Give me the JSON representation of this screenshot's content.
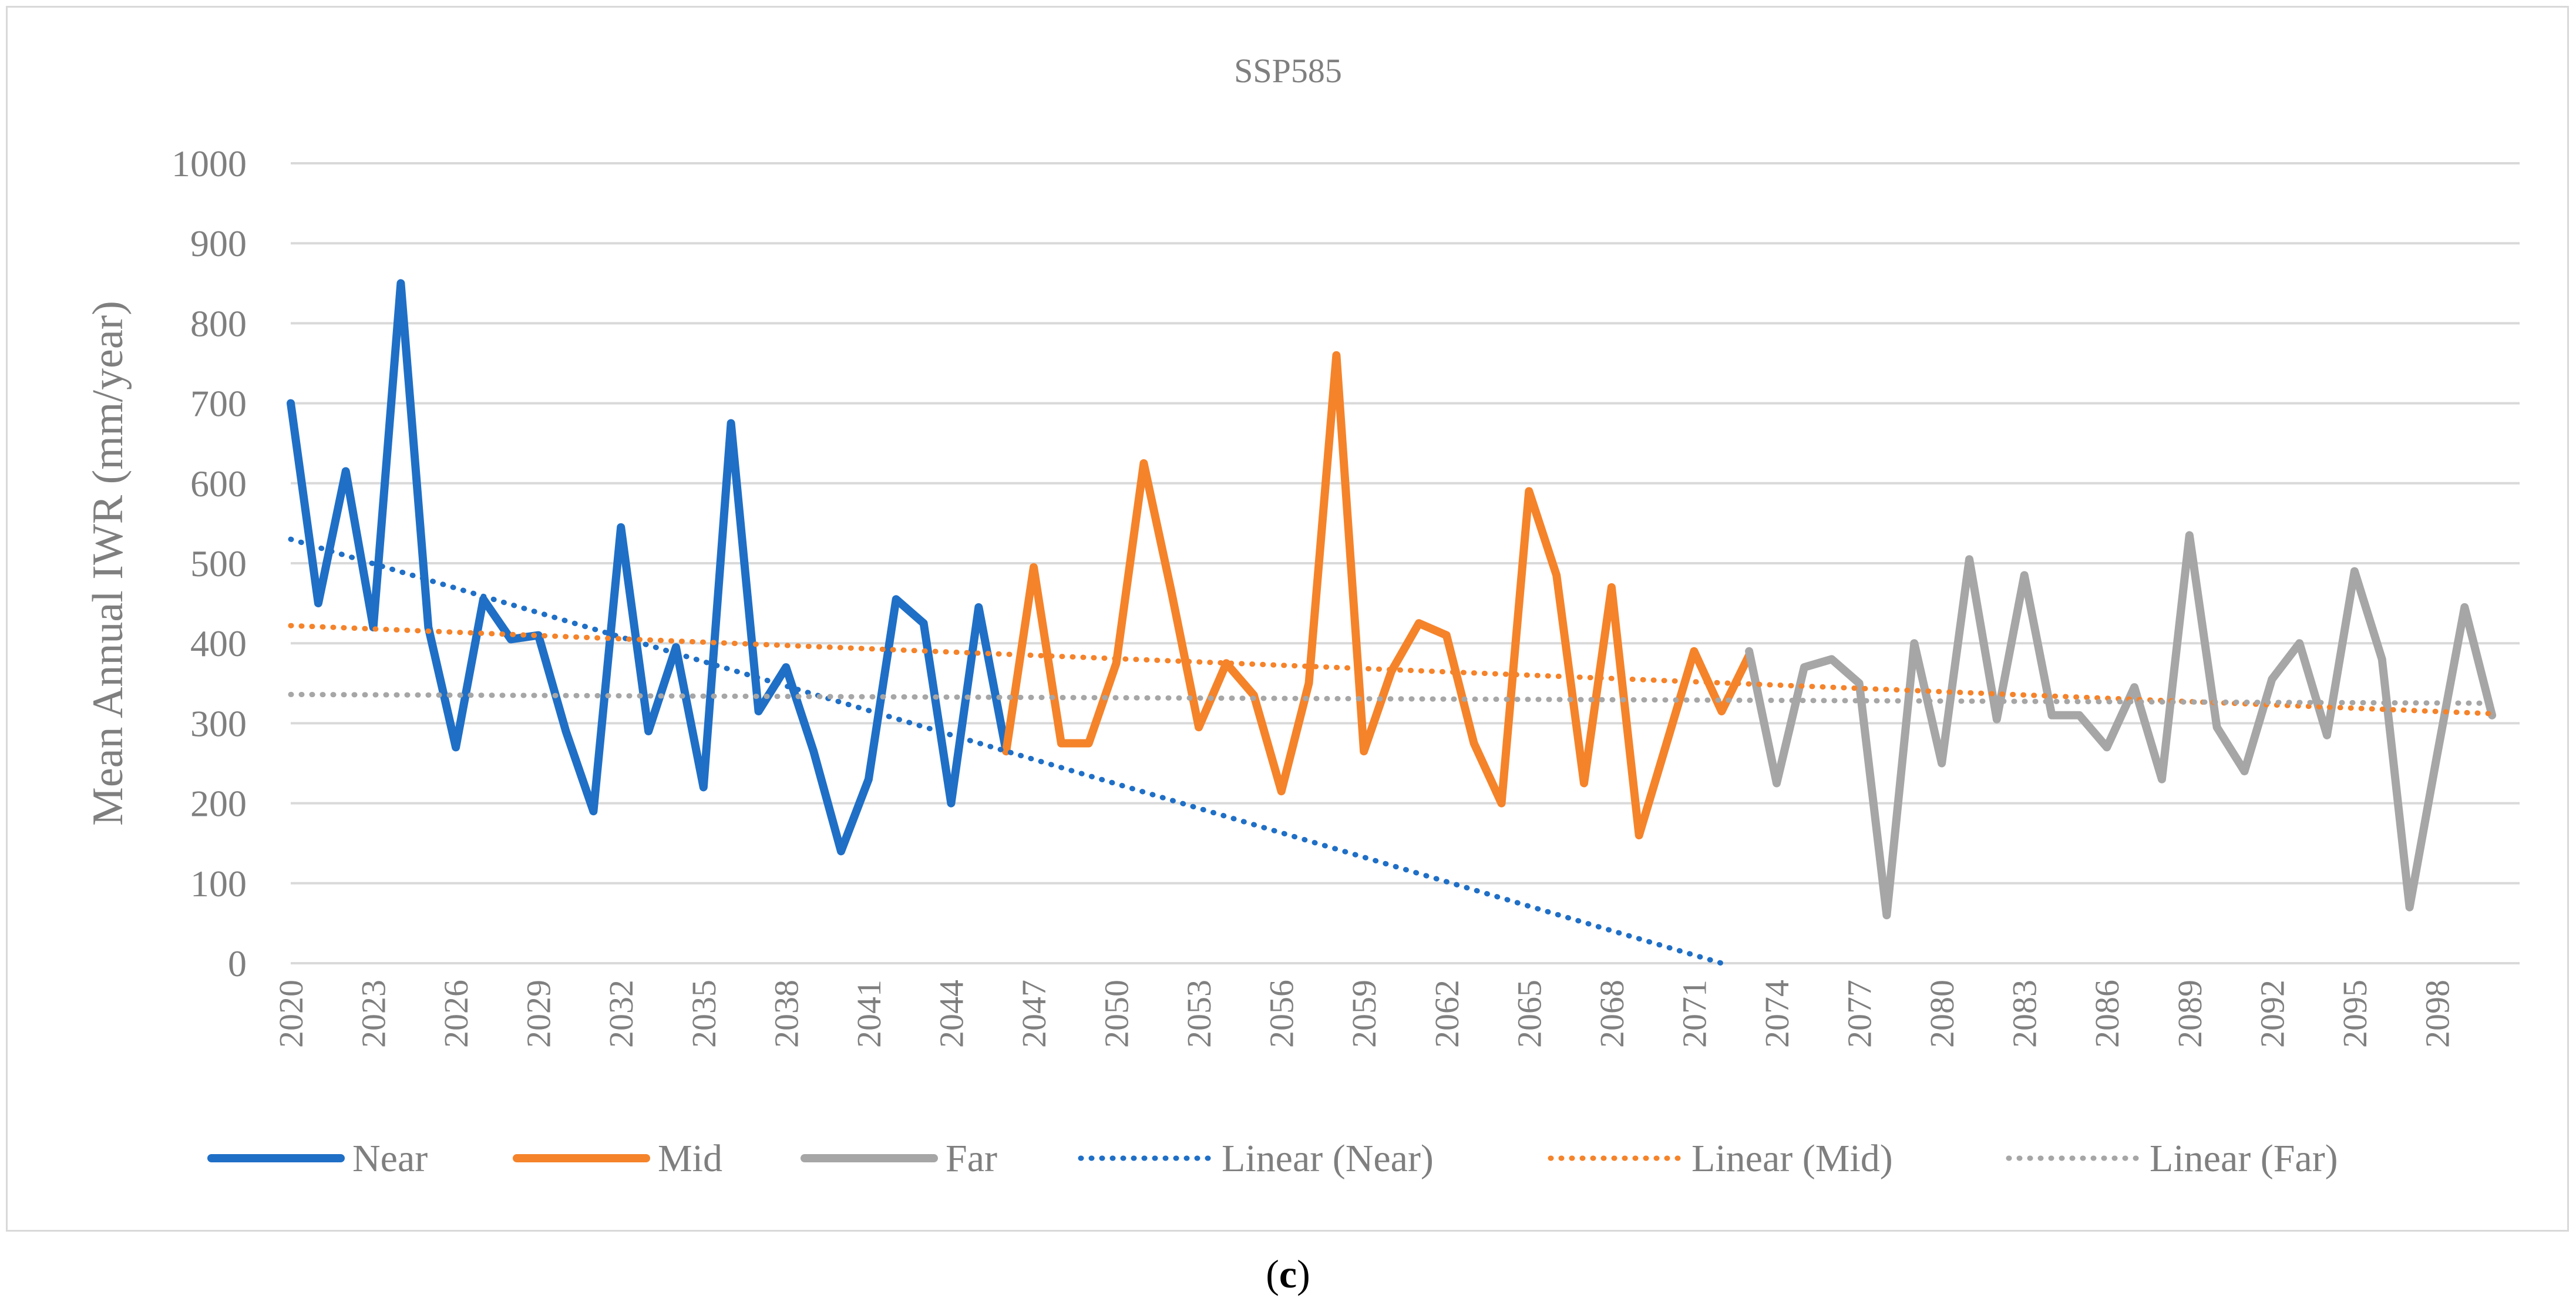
{
  "chart_data": {
    "type": "line",
    "title": "SSP585",
    "ylabel": "Mean Annual IWR (mm/year)",
    "xlabel": "",
    "ylim": [
      0,
      1000
    ],
    "yticks": [
      0,
      100,
      200,
      300,
      400,
      500,
      600,
      700,
      800,
      900,
      1000
    ],
    "xlim": [
      2020,
      2101
    ],
    "xticks": [
      2020,
      2023,
      2026,
      2029,
      2032,
      2035,
      2038,
      2041,
      2044,
      2047,
      2050,
      2053,
      2056,
      2059,
      2062,
      2065,
      2068,
      2071,
      2074,
      2077,
      2080,
      2083,
      2086,
      2089,
      2092,
      2095,
      2098
    ],
    "grid": true,
    "legend_position": "bottom",
    "series": [
      {
        "name": "Near",
        "color": "#1f6fc6",
        "style": "solid",
        "x_start": 2020,
        "values": [
          700,
          450,
          615,
          420,
          850,
          420,
          270,
          455,
          405,
          410,
          290,
          190,
          545,
          290,
          395,
          220,
          675,
          315,
          370,
          265,
          140,
          230,
          455,
          425,
          200,
          445,
          265
        ]
      },
      {
        "name": "Mid",
        "color": "#f5832a",
        "style": "solid",
        "x_start": 2046,
        "values": [
          265,
          495,
          275,
          275,
          375,
          625,
          465,
          295,
          375,
          335,
          215,
          350,
          760,
          265,
          365,
          425,
          410,
          275,
          200,
          590,
          485,
          225,
          470,
          160,
          275,
          390,
          315,
          385
        ]
      },
      {
        "name": "Far",
        "color": "#a6a6a6",
        "style": "solid",
        "x_start": 2073,
        "values": [
          390,
          225,
          370,
          380,
          350,
          60,
          400,
          250,
          505,
          305,
          485,
          310,
          310,
          270,
          345,
          230,
          535,
          295,
          240,
          355,
          400,
          285,
          490,
          380,
          70,
          260,
          445,
          310
        ]
      },
      {
        "name": "Linear (Near)",
        "color": "#1f6fc6",
        "style": "dotted",
        "x": [
          2020,
          2072
        ],
        "values": [
          530,
          0
        ]
      },
      {
        "name": "Linear (Mid)",
        "color": "#f5832a",
        "style": "dotted",
        "x": [
          2020,
          2100
        ],
        "values": [
          422,
          312
        ]
      },
      {
        "name": "Linear (Far)",
        "color": "#a6a6a6",
        "style": "dotted",
        "x": [
          2020,
          2100
        ],
        "values": [
          336,
          325
        ]
      }
    ]
  },
  "caption": {
    "open": "(",
    "letter": "c",
    "close": ")"
  }
}
